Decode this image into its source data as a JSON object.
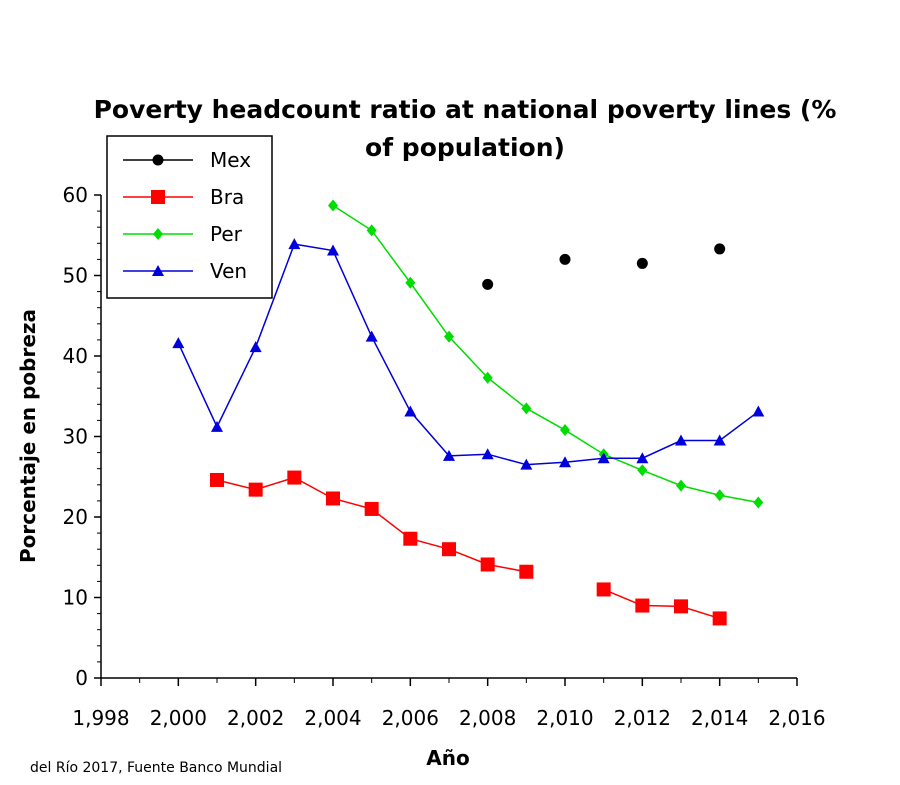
{
  "chart_data": {
    "type": "line",
    "title": "Poverty headcount ratio at national poverty lines (% of population)",
    "title_lines": [
      "Poverty headcount ratio at national poverty lines (%",
      "of population)"
    ],
    "xlabel": "Año",
    "ylabel": "Porcentaje en pobreza",
    "source_note": "del Río 2017, Fuente Banco Mundial",
    "xlim": [
      1998,
      2016
    ],
    "ylim": [
      0,
      60
    ],
    "x_ticks": [
      1998,
      2000,
      2002,
      2004,
      2006,
      2008,
      2010,
      2012,
      2014,
      2016
    ],
    "x_tick_labels": [
      "1,998",
      "2,000",
      "2,002",
      "2,004",
      "2,006",
      "2,008",
      "2,010",
      "2,012",
      "2,014",
      "2,016"
    ],
    "y_ticks": [
      0,
      10,
      20,
      30,
      40,
      50,
      60
    ],
    "y_tick_labels": [
      "0",
      "10",
      "20",
      "30",
      "40",
      "50",
      "60"
    ],
    "legend_position": "top-left",
    "grid": false,
    "series": [
      {
        "name": "Mex",
        "color": "#000000",
        "marker": "circle",
        "line": false,
        "points": [
          [
            2008,
            48.9
          ],
          [
            2010,
            52.0
          ],
          [
            2012,
            51.5
          ],
          [
            2014,
            53.3
          ]
        ]
      },
      {
        "name": "Bra",
        "color": "#ff0000",
        "marker": "square",
        "line": true,
        "points": [
          [
            2001,
            24.6
          ],
          [
            2002,
            23.4
          ],
          [
            2003,
            24.9
          ],
          [
            2004,
            22.3
          ],
          [
            2005,
            21.0
          ],
          [
            2006,
            17.3
          ],
          [
            2007,
            16.0
          ],
          [
            2008,
            14.1
          ],
          [
            2009,
            13.2
          ],
          [
            2011,
            11.0
          ],
          [
            2012,
            9.0
          ],
          [
            2013,
            8.9
          ],
          [
            2014,
            7.4
          ]
        ]
      },
      {
        "name": "Per",
        "color": "#00dd00",
        "marker": "diamond",
        "line": true,
        "points": [
          [
            2004,
            58.7
          ],
          [
            2005,
            55.6
          ],
          [
            2006,
            49.1
          ],
          [
            2007,
            42.4
          ],
          [
            2008,
            37.3
          ],
          [
            2009,
            33.5
          ],
          [
            2010,
            30.8
          ],
          [
            2011,
            27.8
          ],
          [
            2012,
            25.8
          ],
          [
            2013,
            23.9
          ],
          [
            2014,
            22.7
          ],
          [
            2015,
            21.8
          ]
        ]
      },
      {
        "name": "Ven",
        "color": "#0000dd",
        "marker": "triangle",
        "line": true,
        "points": [
          [
            2000,
            41.6
          ],
          [
            2001,
            31.2
          ],
          [
            2002,
            41.1
          ],
          [
            2003,
            53.9
          ],
          [
            2004,
            53.1
          ],
          [
            2005,
            42.4
          ],
          [
            2006,
            33.1
          ],
          [
            2007,
            27.6
          ],
          [
            2008,
            27.8
          ],
          [
            2009,
            26.5
          ],
          [
            2010,
            26.8
          ],
          [
            2011,
            27.3
          ],
          [
            2012,
            27.3
          ],
          [
            2013,
            29.5
          ],
          [
            2014,
            29.5
          ],
          [
            2015,
            33.1
          ]
        ]
      }
    ]
  }
}
